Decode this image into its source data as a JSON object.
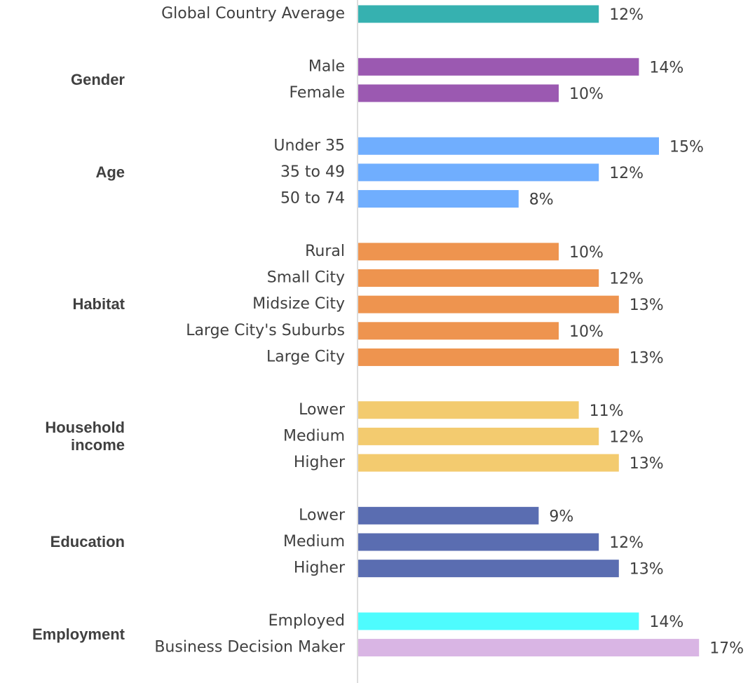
{
  "chart_data": {
    "type": "bar",
    "orientation": "horizontal",
    "groups": [
      {
        "name": null,
        "categories": [
          "Global Country Average"
        ],
        "values": [
          12
        ],
        "value_labels": [
          "12%"
        ],
        "colors": [
          "#36b1b0"
        ]
      },
      {
        "name": "Gender",
        "categories": [
          "Male",
          "Female"
        ],
        "values": [
          14,
          10
        ],
        "value_labels": [
          "14%",
          "10%"
        ],
        "colors": [
          "#9b59b1",
          "#9b59b1"
        ]
      },
      {
        "name": "Age",
        "categories": [
          "Under 35",
          "35 to 49",
          "50 to 74"
        ],
        "values": [
          15,
          12,
          8
        ],
        "value_labels": [
          "15%",
          "12%",
          "8%"
        ],
        "colors": [
          "#70aefe",
          "#70aefe",
          "#70aefe"
        ]
      },
      {
        "name": "Habitat",
        "categories": [
          "Rural",
          "Small City",
          "Midsize City",
          "Large City's Suburbs",
          "Large City"
        ],
        "values": [
          10,
          12,
          13,
          10,
          13
        ],
        "value_labels": [
          "10%",
          "12%",
          "13%",
          "10%",
          "13%"
        ],
        "colors": [
          "#ee944f",
          "#ee944f",
          "#ee944f",
          "#ee944f",
          "#ee944f"
        ]
      },
      {
        "name": "Household income",
        "categories": [
          "Lower",
          "Medium",
          "Higher"
        ],
        "values": [
          11,
          12,
          13
        ],
        "value_labels": [
          "11%",
          "12%",
          "13%"
        ],
        "colors": [
          "#f3cb6f",
          "#f3cb6f",
          "#f3cb6f"
        ]
      },
      {
        "name": "Education",
        "categories": [
          "Lower",
          "Medium",
          "Higher"
        ],
        "values": [
          9,
          12,
          13
        ],
        "value_labels": [
          "9%",
          "12%",
          "13%"
        ],
        "colors": [
          "#5a6db1",
          "#5a6db1",
          "#5a6db1"
        ]
      },
      {
        "name": "Employment",
        "categories": [
          "Employed",
          "Business Decision Maker"
        ],
        "values": [
          14,
          17
        ],
        "value_labels": [
          "14%",
          "17%"
        ],
        "colors": [
          "#4efcfe",
          "#d9b5e4"
        ]
      }
    ]
  }
}
